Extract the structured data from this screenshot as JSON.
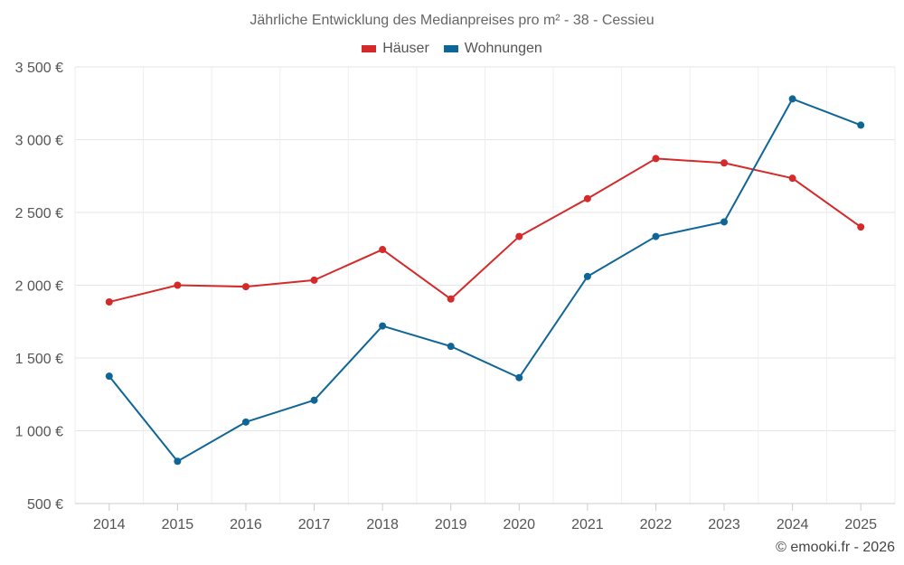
{
  "chart_data": {
    "type": "line",
    "title": "Jährliche Entwicklung des Medianpreises pro m² - 38 - Cessieu",
    "categories": [
      "2014",
      "2015",
      "2016",
      "2017",
      "2018",
      "2019",
      "2020",
      "2021",
      "2022",
      "2023",
      "2024",
      "2025"
    ],
    "series": [
      {
        "name": "Häuser",
        "color": "#d42a2a",
        "values": [
          1885,
          2000,
          1990,
          2035,
          2245,
          1905,
          2335,
          2595,
          2870,
          2840,
          2735,
          2400
        ]
      },
      {
        "name": "Wohnungen",
        "color": "#0f6696",
        "values": [
          1375,
          790,
          1060,
          1210,
          1720,
          1580,
          1365,
          2060,
          2335,
          2435,
          3280,
          3100
        ]
      }
    ],
    "ylim": [
      500,
      3500
    ],
    "yticks": [
      500,
      1000,
      1500,
      2000,
      2500,
      3000,
      3500
    ],
    "ytick_labels": [
      "500 €",
      "1 000 €",
      "1 500 €",
      "2 000 €",
      "2 500 €",
      "3 000 €",
      "3 500 €"
    ],
    "xlabel": "",
    "ylabel": "",
    "grid": true,
    "legend_position": "top-center"
  },
  "credit": "© emooki.fr - 2026"
}
